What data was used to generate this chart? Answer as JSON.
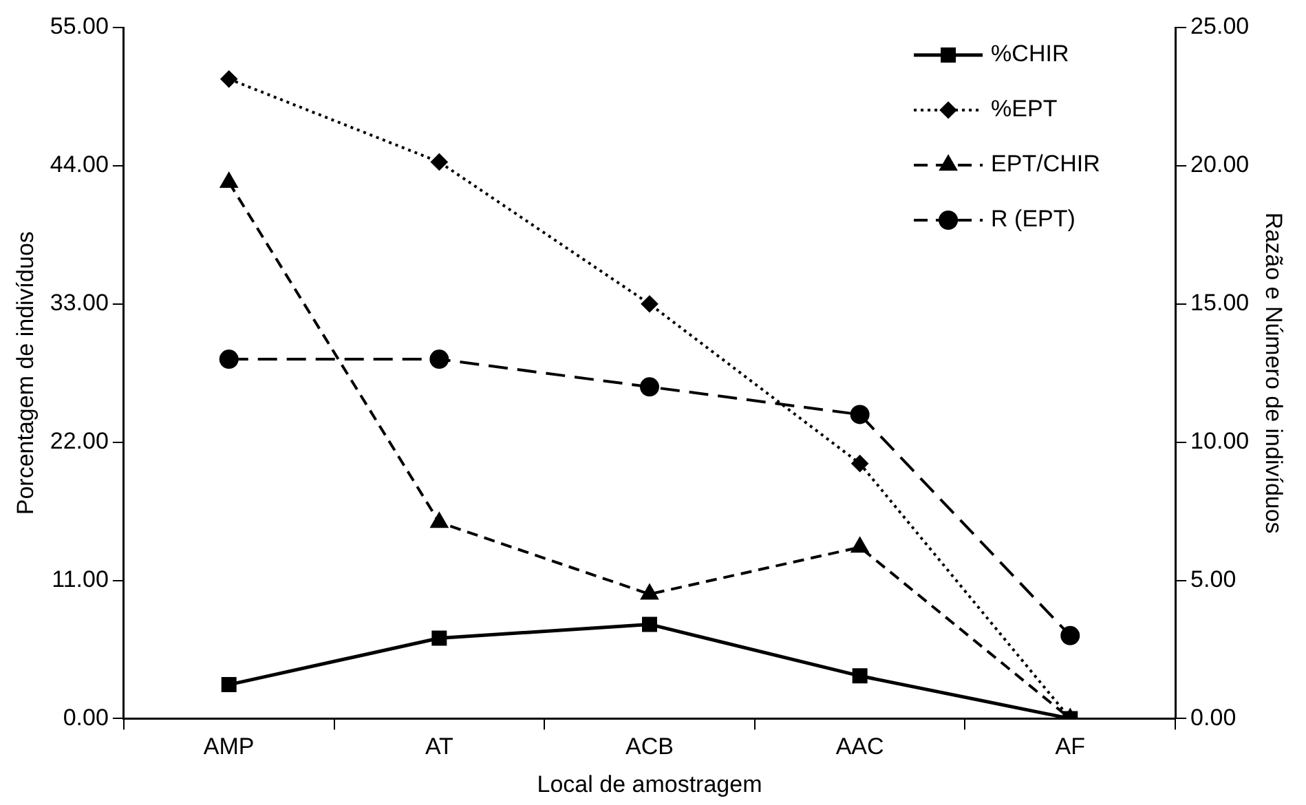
{
  "chart_data": {
    "type": "line",
    "xlabel": "Local de amostragem",
    "ylabel": "Porcentagem de indivíduos",
    "y2label": "Razão e Número de indivíduos",
    "categories": [
      "AMP",
      "AT",
      "ACB",
      "AAC",
      "AF"
    ],
    "series": [
      {
        "name": "%CHIR",
        "color": "#000000",
        "marker": "square",
        "line_style": "solid",
        "values": [
          2.7,
          6.4,
          7.5,
          3.4,
          0
        ]
      },
      {
        "name": "%EPT",
        "color": "#000000",
        "marker": "diamond",
        "line_style": "dotted",
        "values": [
          50.9,
          44.3,
          33.0,
          20.3,
          0
        ]
      },
      {
        "name": "EPT/CHIR",
        "color": "#000000",
        "marker": "triangle",
        "line_style": "dashed",
        "axis": "y2",
        "values": [
          19.4,
          7.1,
          4.5,
          6.2,
          0
        ]
      },
      {
        "name": "R (EPT)",
        "color": "#000000",
        "marker": "circle",
        "line_style": "dashed",
        "axis": "y2",
        "values": [
          13,
          13,
          12,
          11,
          3
        ]
      }
    ],
    "ylim": [
      0,
      55
    ],
    "yticks": [
      {
        "value": 0,
        "label": "0.00"
      },
      {
        "value": 11,
        "label": "11.00"
      },
      {
        "value": 22,
        "label": "22.00"
      },
      {
        "value": 33,
        "label": "33.00"
      },
      {
        "value": 44,
        "label": "44.00"
      },
      {
        "value": 55,
        "label": "55.00"
      }
    ],
    "y2lim": [
      0,
      25
    ],
    "y2ticks": [
      {
        "value": 0,
        "label": "0.00"
      },
      {
        "value": 5,
        "label": "5.00"
      },
      {
        "value": 10,
        "label": "10.00"
      },
      {
        "value": 15,
        "label": "15.00"
      },
      {
        "value": 20,
        "label": "20.00"
      },
      {
        "value": 25,
        "label": "25.00"
      }
    ],
    "grid": false,
    "legend": "top right"
  }
}
